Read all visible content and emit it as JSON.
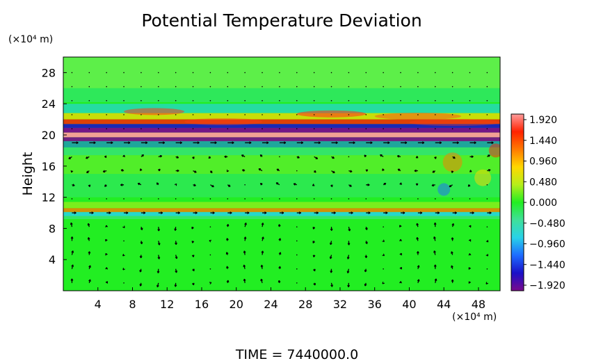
{
  "chart_data": {
    "type": "heatmap",
    "title": "Potential Temperature Deviation",
    "ylabel": "Height",
    "x_unit": "(×10⁴ m)",
    "y_unit": "(×10⁴ m)",
    "x_ticks": [
      4,
      8,
      12,
      16,
      20,
      24,
      28,
      32,
      36,
      40,
      44,
      48
    ],
    "y_ticks": [
      4,
      8,
      12,
      16,
      20,
      24,
      28
    ],
    "xlim": [
      0,
      50.5
    ],
    "ylim": [
      0,
      30
    ],
    "colorbar": {
      "ticks": [
        "1.920",
        "1.440",
        "0.960",
        "0.480",
        "0.000",
        "−0.480",
        "−0.960",
        "−1.440",
        "−1.920"
      ],
      "range": [
        -1.92,
        1.92
      ],
      "colors": [
        "#7a0a8c",
        "#1a10c8",
        "#1d6bff",
        "#28d2e8",
        "#3fe09a",
        "#22ee22",
        "#b6ee1a",
        "#ffd800",
        "#ff7a00",
        "#ff2200",
        "#ff9c9c"
      ]
    },
    "overlay": "velocity vectors",
    "background_level": 0.0
  },
  "footer": {
    "time": "TIME = 7440000.0"
  }
}
